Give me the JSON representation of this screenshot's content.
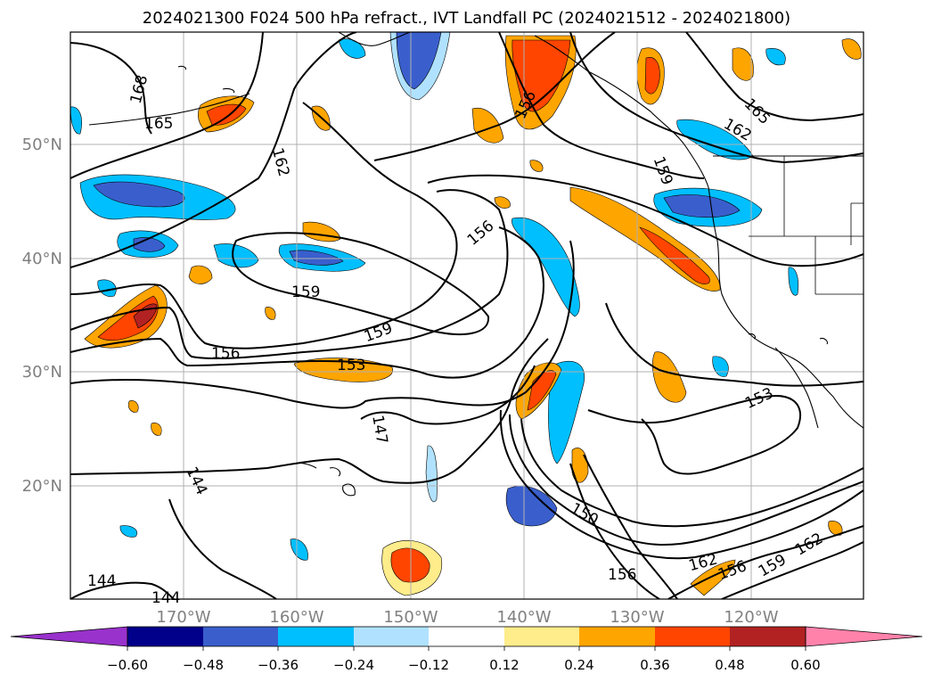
{
  "title": "2024021300 F024 500 hPa refract., IVT Landfall PC (2024021512 - 2024021800)",
  "lat_labels": [
    "50°N",
    "40°N",
    "30°N",
    "20°N"
  ],
  "lon_labels": [
    "170°W",
    "160°W",
    "150°W",
    "140°W",
    "130°W",
    "120°W"
  ],
  "colorbar": {
    "colors": [
      "#9932cc",
      "#00008b",
      "#3a5fcd",
      "#00bfff",
      "#b0e2ff",
      "#ffffff",
      "#ffec8b",
      "#ffa500",
      "#ff4500",
      "#b22222",
      "#ff82ab"
    ],
    "tick_labels": [
      "−0.60",
      "−0.48",
      "−0.36",
      "−0.24",
      "−0.12",
      "0.12",
      "0.24",
      "0.36",
      "0.48",
      "0.60"
    ]
  },
  "contour_labels": [
    "168",
    "165",
    "162",
    "159",
    "156",
    "153",
    "147",
    "144",
    "150"
  ],
  "colors": {
    "land_outline": "#000000",
    "grid": "#b0b0b0",
    "axis_label": "#808080"
  }
}
